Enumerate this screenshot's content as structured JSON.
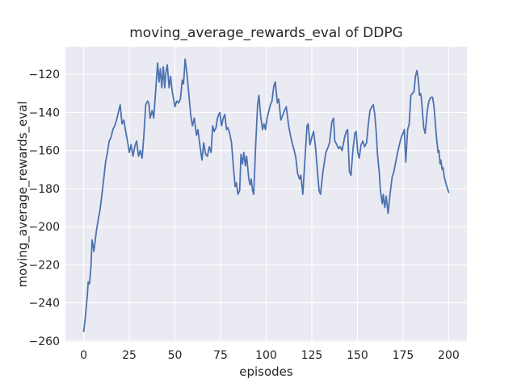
{
  "colors": {
    "figure_bg": "#ffffff",
    "plot_bg": "#eaeaf2",
    "grid": "#ffffff",
    "line": "#4c72b0",
    "text": "#262626"
  },
  "chart_data": {
    "type": "line",
    "title": "moving_average_rewards_eval of DDPG",
    "xlabel": "episodes",
    "ylabel": "moving_average_rewards_eval",
    "xlim": [
      -10,
      210
    ],
    "ylim": [
      -260.5,
      -105.5
    ],
    "grid": "on",
    "legend": "none",
    "xticks": [
      0,
      25,
      50,
      75,
      100,
      125,
      150,
      175,
      200
    ],
    "xtick_labels": [
      "0",
      "25",
      "50",
      "75",
      "100",
      "125",
      "150",
      "175",
      "200"
    ],
    "yticks": [
      -120,
      -140,
      -160,
      -180,
      -200,
      -220,
      -240,
      -260
    ],
    "ytick_labels": [
      "−120",
      "−140",
      "−160",
      "−180",
      "−200",
      "−220",
      "−240",
      "−260"
    ],
    "series": [
      {
        "name": "moving_average_rewards_eval",
        "color": "#4c72b0",
        "points": [
          [
            0,
            -255
          ],
          [
            1,
            -247
          ],
          [
            2,
            -236
          ],
          [
            2.5,
            -229
          ],
          [
            3.2,
            -230
          ],
          [
            4,
            -221
          ],
          [
            4.6,
            -207
          ],
          [
            5.6,
            -213
          ],
          [
            7,
            -202
          ],
          [
            8,
            -196
          ],
          [
            9,
            -191
          ],
          [
            10,
            -183
          ],
          [
            11,
            -175
          ],
          [
            12,
            -166
          ],
          [
            13,
            -161
          ],
          [
            14,
            -155
          ],
          [
            15,
            -153
          ],
          [
            16,
            -149
          ],
          [
            17,
            -147
          ],
          [
            18,
            -144
          ],
          [
            19,
            -140
          ],
          [
            20,
            -136
          ],
          [
            21,
            -146
          ],
          [
            22,
            -144
          ],
          [
            23,
            -150
          ],
          [
            24,
            -155
          ],
          [
            25,
            -161
          ],
          [
            26,
            -157
          ],
          [
            27,
            -163
          ],
          [
            28,
            -158
          ],
          [
            29,
            -155
          ],
          [
            30,
            -163
          ],
          [
            31,
            -160
          ],
          [
            32,
            -164
          ],
          [
            33,
            -152
          ],
          [
            34,
            -136
          ],
          [
            35,
            -134
          ],
          [
            35.7,
            -135
          ],
          [
            36.4,
            -143
          ],
          [
            37.5,
            -139
          ],
          [
            38.4,
            -143
          ],
          [
            39.5,
            -128
          ],
          [
            40.5,
            -114
          ],
          [
            41.3,
            -124
          ],
          [
            42,
            -117
          ],
          [
            42.8,
            -127
          ],
          [
            43.6,
            -116
          ],
          [
            44.4,
            -127
          ],
          [
            45,
            -119
          ],
          [
            45.8,
            -115
          ],
          [
            46.8,
            -127
          ],
          [
            47.6,
            -121
          ],
          [
            48.5,
            -129
          ],
          [
            49.3,
            -133
          ],
          [
            50,
            -137
          ],
          [
            51,
            -134
          ],
          [
            52,
            -135
          ],
          [
            53,
            -133
          ],
          [
            54,
            -123
          ],
          [
            54.7,
            -125
          ],
          [
            55.6,
            -112
          ],
          [
            56.6,
            -120
          ],
          [
            57.6,
            -130
          ],
          [
            58.6,
            -141
          ],
          [
            59.6,
            -147
          ],
          [
            60.6,
            -143
          ],
          [
            61.8,
            -152
          ],
          [
            62.6,
            -149
          ],
          [
            63.8,
            -158
          ],
          [
            64.8,
            -165
          ],
          [
            65.8,
            -156
          ],
          [
            66.8,
            -162
          ],
          [
            67.8,
            -163
          ],
          [
            68.8,
            -158
          ],
          [
            69.8,
            -161
          ],
          [
            70.7,
            -147
          ],
          [
            71.5,
            -150
          ],
          [
            72.5,
            -148
          ],
          [
            73.3,
            -143
          ],
          [
            74,
            -141
          ],
          [
            74.6,
            -140
          ],
          [
            75.5,
            -147
          ],
          [
            76.5,
            -143
          ],
          [
            77.3,
            -141
          ],
          [
            78.3,
            -149
          ],
          [
            79,
            -148
          ],
          [
            80,
            -151
          ],
          [
            81,
            -156
          ],
          [
            82,
            -168
          ],
          [
            83,
            -179
          ],
          [
            83.7,
            -177
          ],
          [
            84.5,
            -183
          ],
          [
            85.5,
            -181
          ],
          [
            86.2,
            -162
          ],
          [
            87,
            -167
          ],
          [
            87.8,
            -161
          ],
          [
            88.6,
            -168
          ],
          [
            89.3,
            -163
          ],
          [
            90.5,
            -175
          ],
          [
            91.2,
            -178
          ],
          [
            91.8,
            -175
          ],
          [
            92.5,
            -181
          ],
          [
            93.2,
            -183
          ],
          [
            94.2,
            -158
          ],
          [
            95.3,
            -136
          ],
          [
            96,
            -131
          ],
          [
            97,
            -142
          ],
          [
            98,
            -149
          ],
          [
            98.8,
            -146
          ],
          [
            99.6,
            -149
          ],
          [
            100.5,
            -143
          ],
          [
            101.5,
            -139
          ],
          [
            102.3,
            -136
          ],
          [
            103.2,
            -134
          ],
          [
            104.2,
            -126
          ],
          [
            105,
            -124
          ],
          [
            106.1,
            -135
          ],
          [
            106.9,
            -133
          ],
          [
            108,
            -144
          ],
          [
            108.9,
            -142
          ],
          [
            110,
            -139
          ],
          [
            111,
            -137
          ],
          [
            112.3,
            -147
          ],
          [
            113.5,
            -153
          ],
          [
            114.5,
            -157
          ],
          [
            115.4,
            -160
          ],
          [
            116.3,
            -164
          ],
          [
            117.2,
            -172
          ],
          [
            118.3,
            -175
          ],
          [
            119,
            -173
          ],
          [
            120.1,
            -183
          ],
          [
            121.2,
            -165
          ],
          [
            122.4,
            -147
          ],
          [
            123,
            -146
          ],
          [
            124,
            -157
          ],
          [
            125,
            -153
          ],
          [
            126,
            -150
          ],
          [
            127,
            -158
          ],
          [
            128,
            -170
          ],
          [
            129,
            -181
          ],
          [
            129.8,
            -183
          ],
          [
            131,
            -172
          ],
          [
            132.7,
            -161
          ],
          [
            134,
            -158
          ],
          [
            134.7,
            -156
          ],
          [
            136,
            -145
          ],
          [
            136.9,
            -143
          ],
          [
            137.6,
            -155
          ],
          [
            138.2,
            -156
          ],
          [
            139.7,
            -159
          ],
          [
            140.6,
            -158
          ],
          [
            141.6,
            -160
          ],
          [
            143,
            -153
          ],
          [
            143.9,
            -150
          ],
          [
            144.6,
            -149
          ],
          [
            145.6,
            -171
          ],
          [
            146.5,
            -173
          ],
          [
            147.5,
            -160
          ],
          [
            148.6,
            -151
          ],
          [
            149.3,
            -150
          ],
          [
            150.2,
            -161
          ],
          [
            151,
            -164
          ],
          [
            152,
            -157
          ],
          [
            153,
            -155
          ],
          [
            153.9,
            -158
          ],
          [
            155,
            -156
          ],
          [
            156,
            -146
          ],
          [
            156.9,
            -139
          ],
          [
            157.9,
            -137
          ],
          [
            158.7,
            -136
          ],
          [
            159.5,
            -141
          ],
          [
            160.3,
            -150
          ],
          [
            161,
            -162
          ],
          [
            162,
            -172
          ],
          [
            162.6,
            -181
          ],
          [
            163.6,
            -188
          ],
          [
            164.2,
            -183
          ],
          [
            165,
            -190
          ],
          [
            165.8,
            -184
          ],
          [
            166.8,
            -193
          ],
          [
            168,
            -182
          ],
          [
            169,
            -174
          ],
          [
            170,
            -171
          ],
          [
            171,
            -166
          ],
          [
            172,
            -161
          ],
          [
            173,
            -157
          ],
          [
            174,
            -153
          ],
          [
            175,
            -151
          ],
          [
            175.7,
            -149
          ],
          [
            176.5,
            -166
          ],
          [
            177.5,
            -149
          ],
          [
            178.4,
            -146
          ],
          [
            179.3,
            -131
          ],
          [
            180.1,
            -130
          ],
          [
            181,
            -129
          ],
          [
            181.8,
            -121
          ],
          [
            182.6,
            -118
          ],
          [
            183.4,
            -123
          ],
          [
            184,
            -131
          ],
          [
            184.6,
            -130
          ],
          [
            185,
            -132
          ],
          [
            186.3,
            -148
          ],
          [
            187.1,
            -151
          ],
          [
            188.3,
            -139
          ],
          [
            189.2,
            -134
          ],
          [
            190.3,
            -132
          ],
          [
            191.2,
            -132
          ],
          [
            192,
            -137
          ],
          [
            193.3,
            -153
          ],
          [
            194.2,
            -161
          ],
          [
            194.7,
            -160
          ],
          [
            195.3,
            -167
          ],
          [
            195.7,
            -165
          ],
          [
            196.4,
            -170
          ],
          [
            196.9,
            -169
          ],
          [
            197.6,
            -174
          ],
          [
            198.7,
            -178
          ],
          [
            199.7,
            -181
          ],
          [
            200,
            -182
          ]
        ]
      }
    ]
  }
}
